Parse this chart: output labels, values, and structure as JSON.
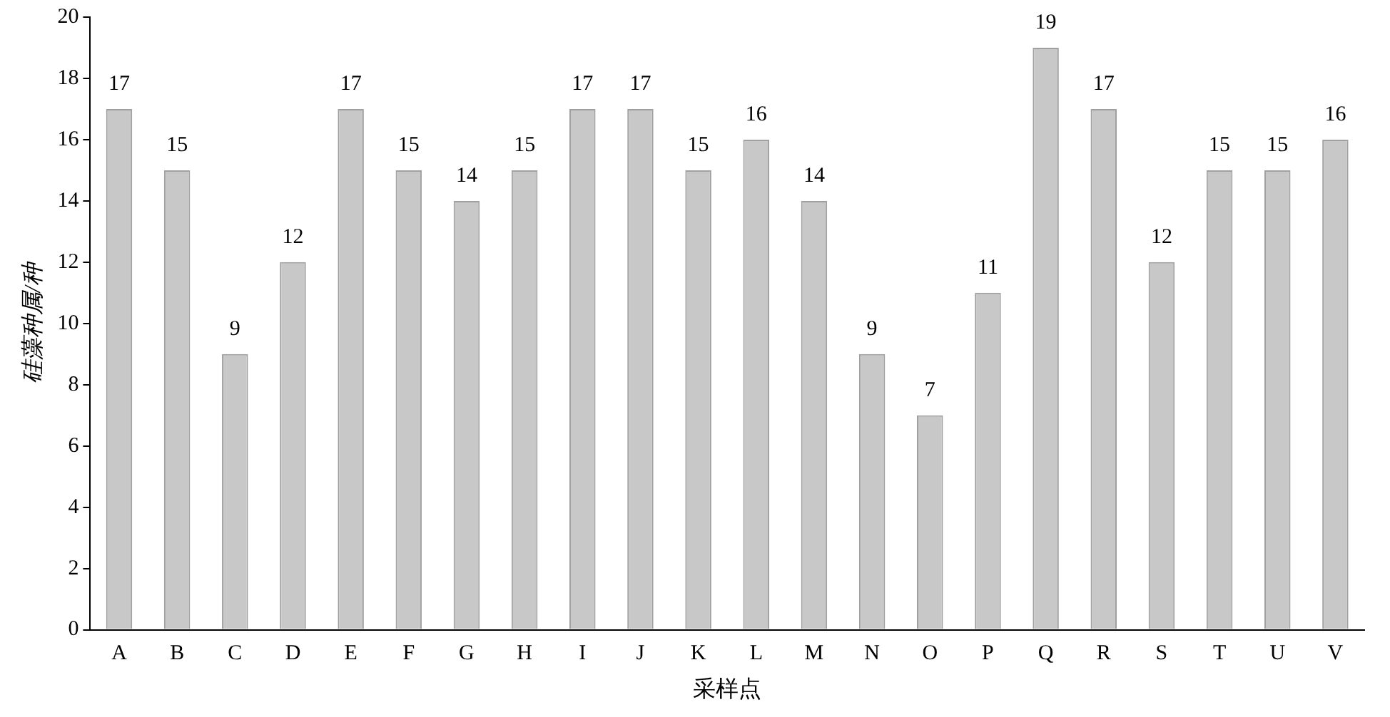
{
  "chart_data": {
    "type": "bar",
    "xlabel": "采样点",
    "ylabel": "硅藻种属/种",
    "categories": [
      "A",
      "B",
      "C",
      "D",
      "E",
      "F",
      "G",
      "H",
      "I",
      "J",
      "K",
      "L",
      "M",
      "N",
      "O",
      "P",
      "Q",
      "R",
      "S",
      "T",
      "U",
      "V"
    ],
    "values": [
      17,
      15,
      9,
      12,
      17,
      15,
      14,
      15,
      17,
      17,
      15,
      16,
      14,
      9,
      7,
      11,
      19,
      17,
      12,
      15,
      15,
      16
    ],
    "color": "#c8c8c8",
    "ylim": [
      0,
      20
    ],
    "yticks": [
      0,
      2,
      4,
      6,
      8,
      10,
      12,
      14,
      16,
      18,
      20
    ],
    "grid": false,
    "data_labels": true
  }
}
